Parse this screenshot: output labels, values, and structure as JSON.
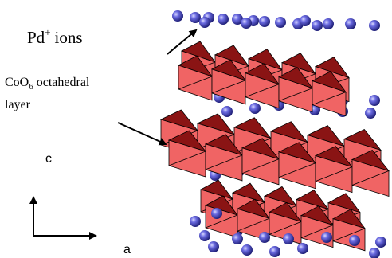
{
  "labels": {
    "pd_ions": {
      "element": "Pd",
      "charge": "+",
      "word": "ions"
    },
    "coo6_layer": {
      "formula": "CoO",
      "subscript": "6",
      "word": "octahedral",
      "line2": "layer"
    }
  },
  "axes": {
    "c": "c",
    "a": "a"
  }
}
